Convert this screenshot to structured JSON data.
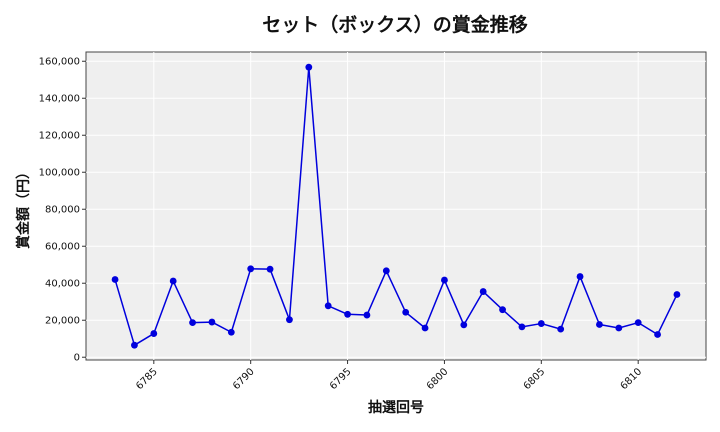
{
  "chart_data": {
    "type": "line",
    "title": "セット（ボックス）の賞金推移",
    "xlabel": "抽選回号",
    "ylabel": "賞金額（円）",
    "xlim": [
      6781.5,
      6813.5
    ],
    "ylim": [
      -1500,
      165000
    ],
    "x_ticks": [
      6785,
      6790,
      6795,
      6800,
      6805,
      6810
    ],
    "y_ticks": [
      0,
      20000,
      40000,
      60000,
      80000,
      100000,
      120000,
      140000,
      160000
    ],
    "x_tick_labels": [
      "6785",
      "6790",
      "6795",
      "6800",
      "6805",
      "6810"
    ],
    "y_tick_labels": [
      "0",
      "20,000",
      "40,000",
      "60,000",
      "80,000",
      "100,000",
      "120,000",
      "140,000",
      "160,000"
    ],
    "grid": true,
    "series": [
      {
        "color": "#0000dd",
        "marker": "circle",
        "x": [
          6783,
          6784,
          6785,
          6786,
          6787,
          6788,
          6789,
          6790,
          6791,
          6792,
          6793,
          6794,
          6795,
          6796,
          6797,
          6798,
          6799,
          6800,
          6801,
          6802,
          6803,
          6804,
          6805,
          6806,
          6807,
          6808,
          6809,
          6810,
          6811,
          6812
        ],
        "y": [
          42000,
          6500,
          12800,
          41200,
          18700,
          19000,
          13500,
          47800,
          47600,
          20300,
          156800,
          27800,
          23200,
          22800,
          46700,
          24300,
          15800,
          41700,
          17500,
          35500,
          25700,
          16400,
          18200,
          15200,
          43600,
          17700,
          15800,
          18700,
          12300,
          33900
        ]
      }
    ]
  }
}
